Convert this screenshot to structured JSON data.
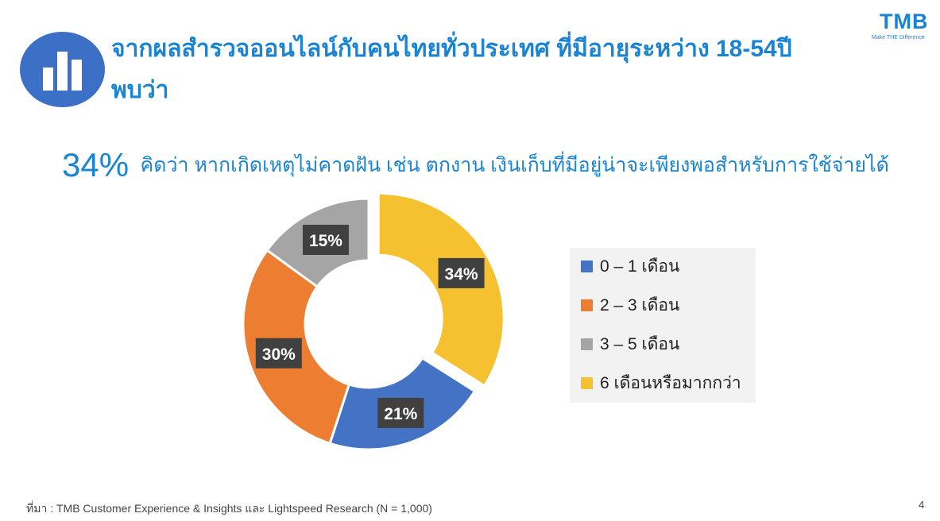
{
  "title": {
    "line1": "จากผลสำรวจออนไลน์กับคนไทยทั่วประเทศ ที่มีอายุระหว่าง 18-54ปี",
    "line2": "พบว่า"
  },
  "logo": {
    "name": "TMB",
    "tagline": "Make THE Difference"
  },
  "headline": {
    "percent": "34%",
    "text": "คิดว่า หากเกิดเหตุไม่คาดฝัน เช่น ตกงาน เงินเก็บที่มีอยู่น่าจะเพียงพอสำหรับการใช้จ่ายได้"
  },
  "chart_data": {
    "type": "pie",
    "variant": "donut",
    "title": "",
    "categories": [
      "0 – 1 เดือน",
      "2 – 3 เดือน",
      "3 – 5 เดือน",
      "6 เดือนหรือมากกว่า"
    ],
    "values": [
      21,
      30,
      15,
      34
    ],
    "labels": [
      "21%",
      "30%",
      "15%",
      "34%"
    ],
    "colors": [
      "#4472c4",
      "#ed7d31",
      "#a5a5a5",
      "#f6c131"
    ],
    "exploded_category": "6 เดือนหรือมากกว่า",
    "legend_position": "right"
  },
  "source": "ที่มา : TMB Customer Experience & Insights และ Lightspeed Research (N = 1,000)",
  "page_number": "4"
}
